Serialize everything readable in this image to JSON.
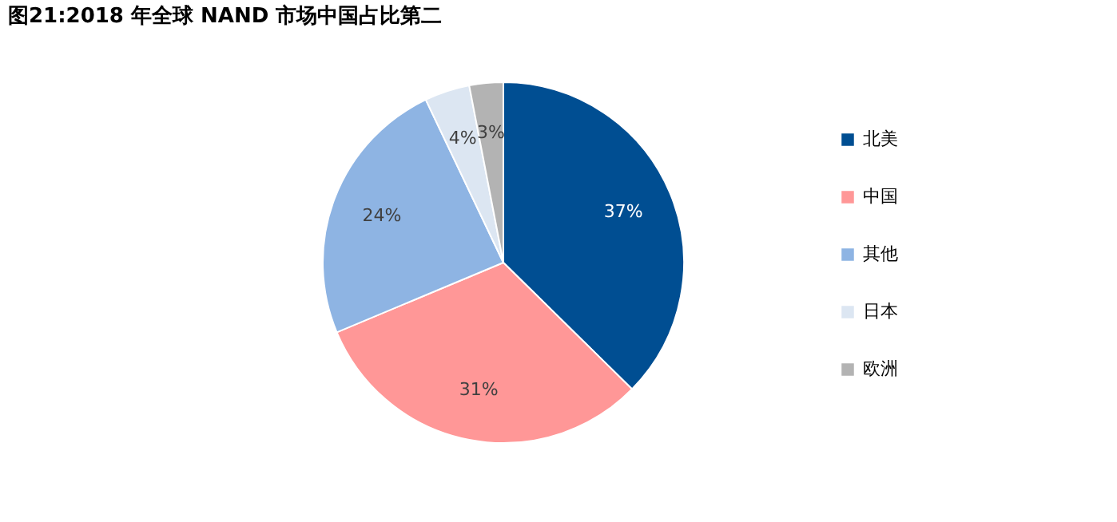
{
  "chart_data": {
    "type": "pie",
    "title": "图21:2018 年全球 NAND 市场中国占比第二",
    "categories": [
      "北美",
      "中国",
      "其他",
      "日本",
      "欧洲"
    ],
    "values": [
      37,
      31,
      24,
      4,
      3
    ],
    "value_labels": [
      "37%",
      "31%",
      "24%",
      "4%",
      "3%"
    ],
    "colors": [
      "#004e92",
      "#ff9797",
      "#8eb4e3",
      "#dce6f2",
      "#b3b3b3"
    ],
    "legend": "right"
  }
}
